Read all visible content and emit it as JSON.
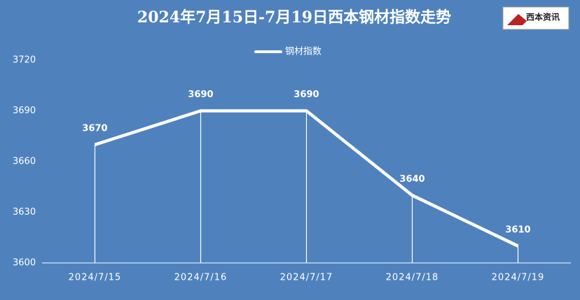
{
  "chart_data": {
    "type": "line",
    "title": "2024年7月15日-7月19日西本钢材指数走势",
    "categories": [
      "2024/7/15",
      "2024/7/16",
      "2024/7/17",
      "2024/7/18",
      "2024/7/19"
    ],
    "series": [
      {
        "name": "钢材指数",
        "color": "#ffffff",
        "values": [
          3670,
          3690,
          3690,
          3640,
          3610
        ]
      }
    ],
    "ylim": [
      3600,
      3720
    ],
    "yticks": [
      3600,
      3630,
      3660,
      3690,
      3720
    ],
    "grid": false,
    "drop_lines": true,
    "legend": "top"
  },
  "logo": {
    "text": "西本资讯"
  }
}
